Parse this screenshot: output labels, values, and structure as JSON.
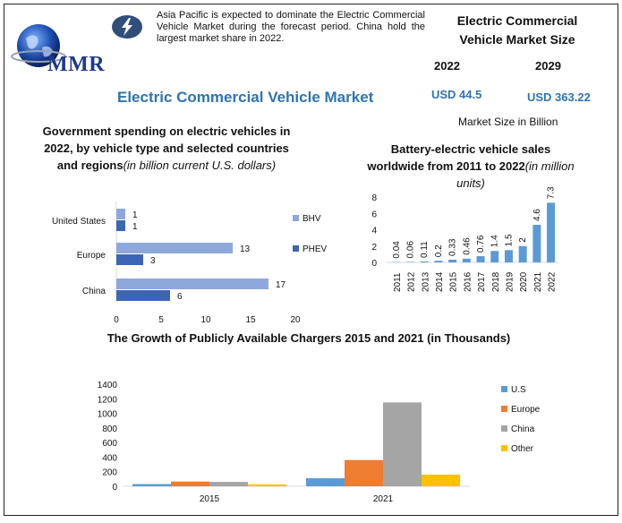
{
  "header": {
    "logo_text": "MMR",
    "info_text": "Asia Pacific is expected to dominate the Electric Commercial Vehicle Market during the forecast period. China hold the largest market share in 2022.",
    "main_title": "Electric Commercial Vehicle Market",
    "size_title_line1": "Electric Commercial",
    "size_title_line2": "Vehicle Market Size",
    "year_a": "2022",
    "year_b": "2029",
    "value_a": "USD 44.5",
    "value_b": "USD 363.22",
    "unit": "Market Size in Billion"
  },
  "colors": {
    "accent": "#2e74b5",
    "bhv": "#8fa8dc",
    "phev": "#3c66b5",
    "bar": "#5b9bd5",
    "us": "#5b9bd5",
    "europe": "#ed7d31",
    "china": "#a5a5a5",
    "other": "#ffc000"
  },
  "chart_data": [
    {
      "type": "bar",
      "orientation": "horizontal",
      "title": "Government spending on electric vehicles in 2022, by vehicle type and selected countries and regions",
      "title_italic": "(in billion current U.S. dollars)",
      "categories": [
        "United States",
        "Europe",
        "China"
      ],
      "series": [
        {
          "name": "BHV",
          "values": [
            1,
            13,
            17
          ]
        },
        {
          "name": "PHEV",
          "values": [
            1,
            3,
            6
          ]
        }
      ],
      "xlim": [
        0,
        20
      ],
      "xticks": [
        "0",
        "5",
        "10",
        "15",
        "20"
      ],
      "legend": "right"
    },
    {
      "type": "bar",
      "title": "Battery-electric vehicle sales worldwide from 2011 to 2022",
      "title_italic": "(in million units)",
      "categories": [
        "2011",
        "2012",
        "2013",
        "2014",
        "2015",
        "2016",
        "2017",
        "2018",
        "2019",
        "2020",
        "2021",
        "2022"
      ],
      "values": [
        0.04,
        0.06,
        0.11,
        0.2,
        0.33,
        0.46,
        0.76,
        1.4,
        1.5,
        2,
        4.6,
        7.3
      ],
      "labels": [
        "0.04",
        "0.06",
        "0.11",
        "0.2",
        "0.33",
        "0.46",
        "0.76",
        "1.4",
        "1.5",
        "2",
        "4.6",
        "7.3"
      ],
      "ylim": [
        0,
        8
      ],
      "yticks": [
        "0",
        "2",
        "4",
        "6",
        "8"
      ]
    },
    {
      "type": "bar",
      "title": "The Growth of Publicly Available Chargers 2015 and 2021 (in Thousands)",
      "categories": [
        "2015",
        "2021"
      ],
      "series": [
        {
          "name": "U.S",
          "values": [
            30,
            110
          ]
        },
        {
          "name": "Europe",
          "values": [
            65,
            360
          ]
        },
        {
          "name": "China",
          "values": [
            60,
            1150
          ]
        },
        {
          "name": "Other",
          "values": [
            25,
            160
          ]
        }
      ],
      "ylim": [
        0,
        1400
      ],
      "yticks": [
        "0",
        "200",
        "400",
        "600",
        "800",
        "1000",
        "1200",
        "1400"
      ],
      "legend": "right"
    }
  ]
}
